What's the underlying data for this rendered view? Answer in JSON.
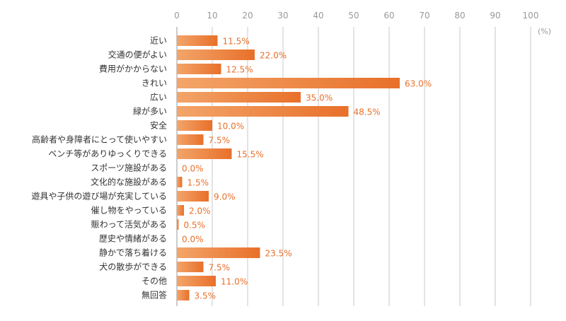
{
  "chart_data": {
    "type": "bar",
    "orientation": "horizontal",
    "unit": "(%)",
    "xlim": [
      0,
      100
    ],
    "xticks": [
      0,
      10,
      20,
      30,
      40,
      50,
      60,
      70,
      80,
      90,
      100
    ],
    "grid": true,
    "bar_color": "#e8702a",
    "bar_color_light": "#f3a56a",
    "label_color": "#e8702a",
    "categories": [
      "近い",
      "交通の便がよい",
      "費用がかからない",
      "きれい",
      "広い",
      "緑が多い",
      "安全",
      "高齢者や身障者にとって使いやすい",
      "ベンチ等がありゆっくりできる",
      "スポーツ施設がある",
      "文化的な施設がある",
      "遊具や子供の遊び場が充実している",
      "催し物をやっている",
      "賑わって活気がある",
      "歴史や情緒がある",
      "静かで落ち着ける",
      "犬の散歩ができる",
      "その他",
      "無回答"
    ],
    "values": [
      11.5,
      22.0,
      12.5,
      63.0,
      35.0,
      48.5,
      10.0,
      7.5,
      15.5,
      0.0,
      1.5,
      9.0,
      2.0,
      0.5,
      0.0,
      23.5,
      7.5,
      11.0,
      3.5
    ],
    "value_labels": [
      "11.5%",
      "22.0%",
      "12.5%",
      "63.0%",
      "35.0%",
      "48.5%",
      "10.0%",
      "7.5%",
      "15.5%",
      "0.0%",
      "1.5%",
      "9.0%",
      "2.0%",
      "0.5%",
      "0.0%",
      "23.5%",
      "7.5%",
      "11.0%",
      "3.5%"
    ]
  }
}
